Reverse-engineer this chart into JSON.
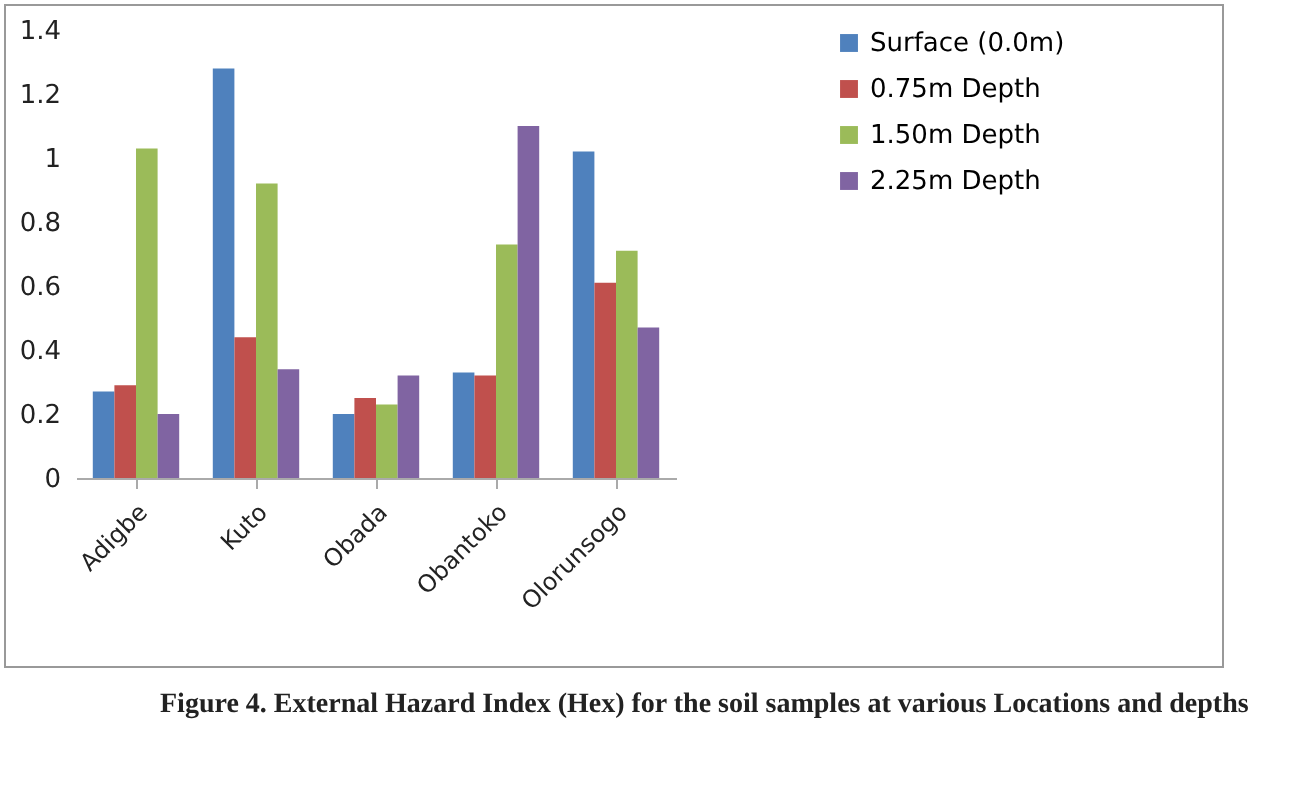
{
  "chart_data": {
    "type": "bar",
    "categories": [
      "Adigbe",
      "Kuto",
      "Obada",
      "Obantoko",
      "Olorunsogo"
    ],
    "series": [
      {
        "name": "Surface (0.0m)",
        "color": "#4f81bd",
        "values": [
          0.27,
          1.28,
          0.2,
          0.33,
          1.02
        ]
      },
      {
        "name": "0.75m Depth",
        "color": "#c0504d",
        "values": [
          0.29,
          0.44,
          0.25,
          0.32,
          0.61
        ]
      },
      {
        "name": "1.50m Depth",
        "color": "#9bbb59",
        "values": [
          1.03,
          0.92,
          0.23,
          0.73,
          0.71
        ]
      },
      {
        "name": "2.25m Depth",
        "color": "#8064a2",
        "values": [
          0.2,
          0.34,
          0.32,
          1.1,
          0.47
        ]
      }
    ],
    "ylim": [
      0,
      1.4
    ],
    "yticks": [
      0,
      0.2,
      0.4,
      0.6,
      0.8,
      1,
      1.2,
      1.4
    ],
    "grid": false,
    "legend": "right",
    "annotations": [
      "Figure 4. External Hazard Index (Hex) for the soil samples at various Locations and depths"
    ]
  }
}
